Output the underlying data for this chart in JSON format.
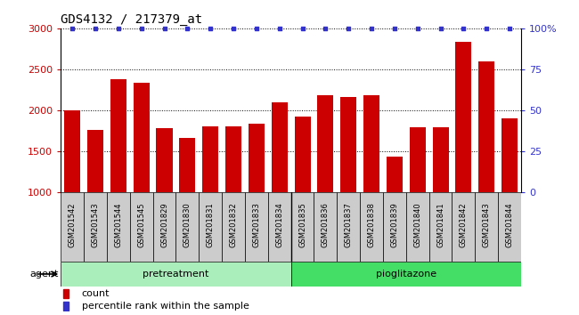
{
  "title": "GDS4132 / 217379_at",
  "samples": [
    "GSM201542",
    "GSM201543",
    "GSM201544",
    "GSM201545",
    "GSM201829",
    "GSM201830",
    "GSM201831",
    "GSM201832",
    "GSM201833",
    "GSM201834",
    "GSM201835",
    "GSM201836",
    "GSM201837",
    "GSM201838",
    "GSM201839",
    "GSM201840",
    "GSM201841",
    "GSM201842",
    "GSM201843",
    "GSM201844"
  ],
  "counts": [
    2000,
    1760,
    2380,
    2340,
    1780,
    1660,
    1800,
    1800,
    1840,
    2100,
    1920,
    2180,
    2160,
    2180,
    1430,
    1790,
    1790,
    2840,
    2600,
    1900
  ],
  "percentile": [
    100,
    100,
    100,
    100,
    100,
    100,
    100,
    100,
    100,
    100,
    100,
    100,
    100,
    100,
    100,
    100,
    100,
    100,
    100,
    100
  ],
  "pretreatment_count": 10,
  "pioglitazone_count": 10,
  "ylim_left": [
    1000,
    3000
  ],
  "ylim_right": [
    0,
    100
  ],
  "yticks_left": [
    1000,
    1500,
    2000,
    2500,
    3000
  ],
  "yticks_right": [
    0,
    25,
    50,
    75,
    100
  ],
  "bar_color": "#cc0000",
  "dot_color": "#3333cc",
  "pretreatment_color": "#aaeebb",
  "pioglitazone_color": "#44dd66",
  "tick_bg_color": "#cccccc",
  "background_color": "#ffffff",
  "legend_count_label": "count",
  "legend_percentile_label": "percentile rank within the sample",
  "agent_label": "agent"
}
